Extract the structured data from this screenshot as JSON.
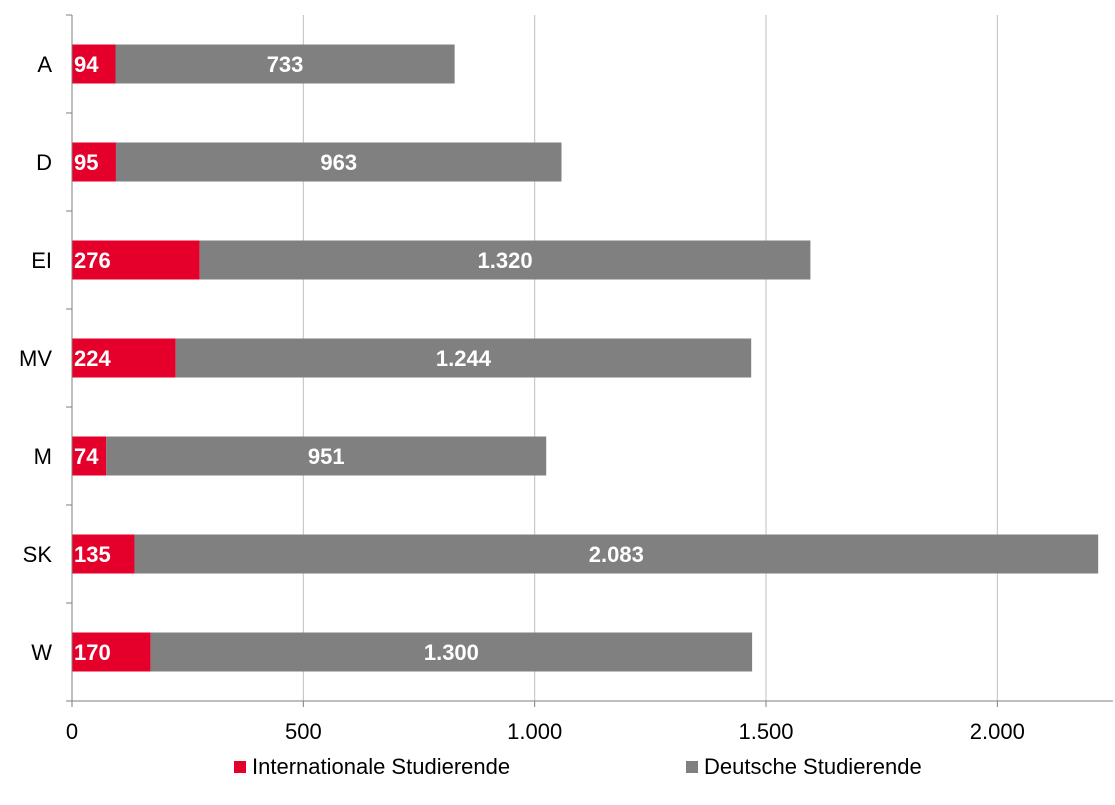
{
  "chart_data": {
    "type": "bar",
    "orientation": "horizontal",
    "stacked": true,
    "title": "",
    "xlabel": "",
    "ylabel": "",
    "categories": [
      "A",
      "D",
      "EI",
      "MV",
      "M",
      "SK",
      "W"
    ],
    "series": [
      {
        "name": "Internationale Studierende",
        "color": "#e4002b",
        "values": [
          94,
          95,
          276,
          224,
          74,
          135,
          170
        ],
        "labels": [
          "94",
          "95",
          "276",
          "224",
          "74",
          "135",
          "170"
        ]
      },
      {
        "name": "Deutsche Studierende",
        "color": "#808080",
        "values": [
          733,
          963,
          1320,
          1244,
          951,
          2083,
          1300
        ],
        "labels": [
          "733",
          "963",
          "1.320",
          "1.244",
          "951",
          "2.083",
          "1.300"
        ]
      }
    ],
    "xlim": [
      0,
      2250
    ],
    "x_ticks": [
      0,
      500,
      1000,
      1500,
      2000
    ],
    "x_tick_labels": [
      "0",
      "500",
      "1.000",
      "1.500",
      "2.000"
    ],
    "grid": "vertical gridlines",
    "legend_position": "bottom"
  },
  "legend": {
    "items": [
      {
        "label": "Internationale Studierende",
        "color": "#e4002b"
      },
      {
        "label": "Deutsche Studierende",
        "color": "#808080"
      }
    ]
  }
}
